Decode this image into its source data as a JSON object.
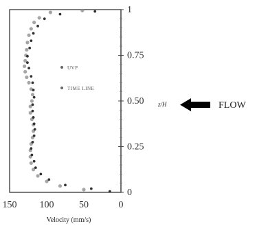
{
  "chart_data": {
    "type": "scatter",
    "xlabel": "Velocity (mm/s)",
    "ylabel": "z/H",
    "xlim": [
      150,
      0
    ],
    "ylim": [
      0,
      1
    ],
    "x_ticks": [
      "150",
      "100",
      "50",
      "0"
    ],
    "x_tick_values": [
      150,
      100,
      50,
      0
    ],
    "y_ticks": [
      "0",
      "0.25",
      "0.50",
      "0.75",
      "1"
    ],
    "y_tick_values": [
      0,
      0.25,
      0.5,
      0.75,
      1
    ],
    "legend_position": "center",
    "series": [
      {
        "name": "UVP",
        "marker": "circle-dotted",
        "points": [
          [
            52,
            0.995
          ],
          [
            95,
            0.985
          ],
          [
            110,
            0.955
          ],
          [
            117,
            0.93
          ],
          [
            121,
            0.895
          ],
          [
            124,
            0.86
          ],
          [
            126,
            0.82
          ],
          [
            127,
            0.78
          ],
          [
            128,
            0.75
          ],
          [
            129,
            0.72
          ],
          [
            130,
            0.69
          ],
          [
            129,
            0.66
          ],
          [
            127,
            0.63
          ],
          [
            124,
            0.6
          ],
          [
            121,
            0.565
          ],
          [
            119,
            0.535
          ],
          [
            120,
            0.5
          ],
          [
            122,
            0.47
          ],
          [
            122,
            0.435
          ],
          [
            120,
            0.4
          ],
          [
            118,
            0.37
          ],
          [
            118,
            0.335
          ],
          [
            119,
            0.3
          ],
          [
            121,
            0.265
          ],
          [
            122,
            0.23
          ],
          [
            122,
            0.195
          ],
          [
            121,
            0.16
          ],
          [
            118,
            0.125
          ],
          [
            112,
            0.09
          ],
          [
            100,
            0.06
          ],
          [
            82,
            0.035
          ],
          [
            50,
            0.015
          ]
        ]
      },
      {
        "name": "TIME LINE",
        "marker": "circle-filled",
        "points": [
          [
            35,
            0.99
          ],
          [
            82,
            0.975
          ],
          [
            103,
            0.95
          ],
          [
            112,
            0.91
          ],
          [
            118,
            0.87
          ],
          [
            121,
            0.83
          ],
          [
            123,
            0.79
          ],
          [
            126,
            0.745
          ],
          [
            126,
            0.71
          ],
          [
            124,
            0.68
          ],
          [
            121,
            0.635
          ],
          [
            119,
            0.6
          ],
          [
            118,
            0.56
          ],
          [
            117,
            0.52
          ],
          [
            119,
            0.48
          ],
          [
            119,
            0.445
          ],
          [
            118,
            0.41
          ],
          [
            117,
            0.375
          ],
          [
            116,
            0.345
          ],
          [
            117,
            0.31
          ],
          [
            119,
            0.275
          ],
          [
            121,
            0.24
          ],
          [
            120,
            0.205
          ],
          [
            117,
            0.17
          ],
          [
            115,
            0.135
          ],
          [
            108,
            0.1
          ],
          [
            97,
            0.07
          ],
          [
            75,
            0.04
          ],
          [
            40,
            0.02
          ],
          [
            15,
            0.005
          ]
        ]
      }
    ],
    "annotations": {
      "z_label": "z/H",
      "flow_label": "FLOW"
    }
  }
}
